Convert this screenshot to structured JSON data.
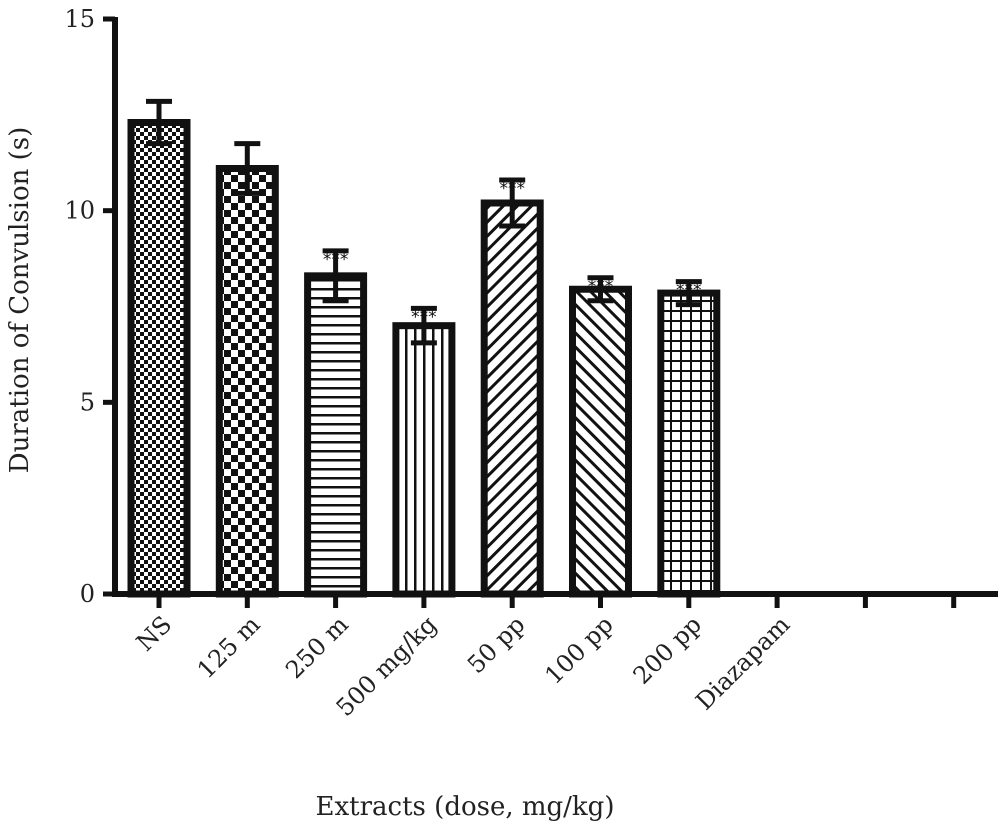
{
  "chart_data": {
    "type": "bar",
    "title": "",
    "xlabel": "Extracts (dose, mg/kg)",
    "ylabel": "Duration of Convulsion (s)",
    "ylim": [
      0,
      15
    ],
    "yticks": [
      0,
      5,
      10,
      15
    ],
    "categories": [
      "NS",
      "125 m",
      "250  m",
      "500 mg/kg",
      "50 pp",
      "100 pp",
      "200 pp",
      "Diazapam",
      "",
      ""
    ],
    "values": [
      12.3,
      11.1,
      8.3,
      7.0,
      10.2,
      7.95,
      7.85,
      null,
      null,
      null
    ],
    "errors": [
      0.55,
      0.65,
      0.65,
      0.45,
      0.6,
      0.3,
      0.3,
      null,
      null,
      null
    ],
    "significance": [
      "",
      "",
      "***",
      "***",
      "***",
      "***",
      "***",
      "",
      "",
      ""
    ],
    "patterns": [
      "fine-checker",
      "checker",
      "horizontal-lines",
      "vertical-lines",
      "diagonal-up",
      "diagonal-down",
      "grid",
      "none",
      "none",
      "none"
    ],
    "grid": false,
    "legend": "none"
  }
}
